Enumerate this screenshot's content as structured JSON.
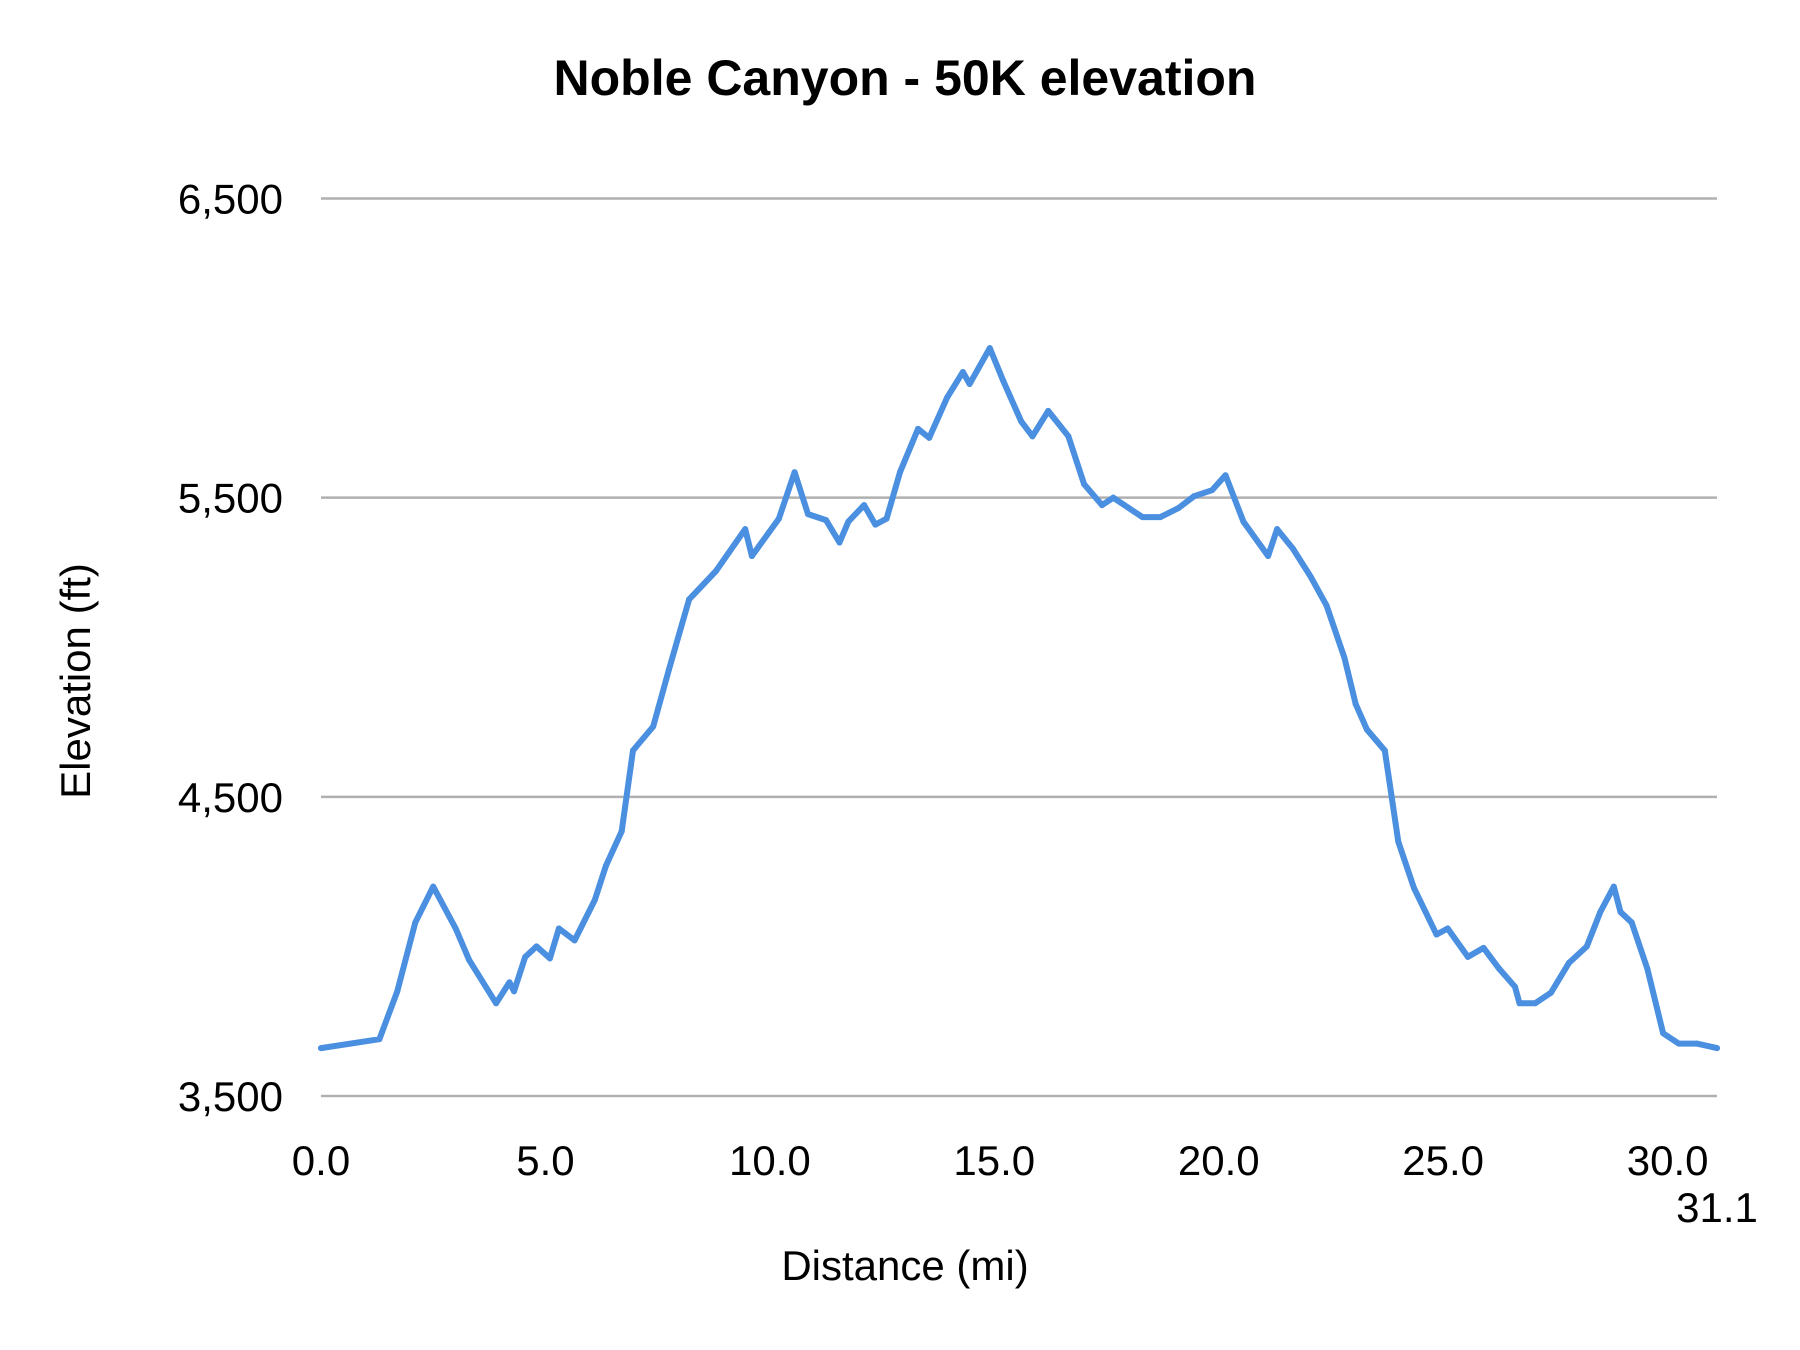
{
  "chart_data": {
    "type": "line",
    "title": "Noble Canyon - 50K elevation",
    "xlabel": "Distance (mi)",
    "ylabel": "Elevation (ft)",
    "xlim": [
      0,
      31.1
    ],
    "ylim": [
      3500,
      6500
    ],
    "x_ticks": [
      "0.0",
      "5.0",
      "10.0",
      "15.0",
      "20.0",
      "25.0",
      "30.0",
      "31.1"
    ],
    "x_tick_values": [
      0,
      5,
      10,
      15,
      20,
      25,
      30,
      31.1
    ],
    "y_ticks": [
      "3,500",
      "4,500",
      "5,500",
      "6,500"
    ],
    "y_tick_values": [
      3500,
      4500,
      5500,
      6500
    ],
    "grid": "horizontal",
    "legend": "none",
    "line_color": "#4a8fe0",
    "series": [
      {
        "x": [
          0,
          1.3,
          1.7,
          2.1,
          2.5,
          3.0,
          3.3,
          3.9,
          4.2,
          4.3,
          4.55,
          4.8,
          5.1,
          5.3,
          5.65,
          6.1,
          6.35,
          6.7,
          6.95,
          7.4,
          7.75,
          8.2,
          8.8,
          9.45,
          9.6,
          10.2,
          10.55,
          10.85,
          11.25,
          11.55,
          11.75,
          12.1,
          12.35,
          12.6,
          12.9,
          13.3,
          13.55,
          13.95,
          14.3,
          14.45,
          14.9,
          15.2,
          15.6,
          15.85,
          16.2,
          16.65,
          17.0,
          17.4,
          17.65,
          18.3,
          18.7,
          19.1,
          19.45,
          19.85,
          20.15,
          20.55,
          21.1,
          21.3,
          21.65,
          22.05,
          22.4,
          22.8,
          23.05,
          23.3,
          23.7,
          24.0,
          24.35,
          24.85,
          25.1,
          25.55,
          25.9,
          26.25,
          26.6,
          26.7,
          27.05,
          27.4,
          27.8,
          28.2,
          28.5,
          28.8,
          28.95,
          29.2,
          29.55,
          29.9,
          30.25,
          30.65,
          31.1
        ],
        "y": [
          3660,
          3690,
          3850,
          4080,
          4200,
          4060,
          3955,
          3810,
          3880,
          3850,
          3965,
          4000,
          3960,
          4060,
          4020,
          4155,
          4270,
          4385,
          4655,
          4735,
          4925,
          5160,
          5255,
          5395,
          5305,
          5430,
          5585,
          5445,
          5425,
          5350,
          5420,
          5475,
          5410,
          5430,
          5585,
          5730,
          5700,
          5835,
          5920,
          5880,
          6000,
          5890,
          5755,
          5705,
          5790,
          5705,
          5545,
          5475,
          5500,
          5435,
          5435,
          5465,
          5505,
          5525,
          5575,
          5420,
          5305,
          5395,
          5330,
          5235,
          5140,
          4965,
          4810,
          4725,
          4655,
          4350,
          4195,
          4040,
          4060,
          3965,
          3995,
          3925,
          3865,
          3810,
          3810,
          3845,
          3945,
          4000,
          4115,
          4200,
          4115,
          4080,
          3925,
          3710,
          3675,
          3675,
          3660
        ]
      }
    ]
  }
}
